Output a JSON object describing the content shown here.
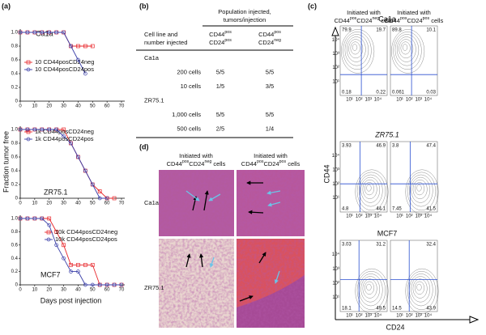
{
  "panel_labels": [
    "(a)",
    "(b)",
    "(c)",
    "(d)"
  ],
  "panel_a": {
    "ylabel": "Fraction tumor free"
  },
  "chart_data": [
    {
      "type": "line",
      "title": "Ca1a",
      "x": [
        0,
        5,
        10,
        15,
        20,
        25,
        30,
        35,
        40,
        45,
        50
      ],
      "xlim": [
        0,
        70
      ],
      "xticks": [
        0,
        10,
        20,
        30,
        40,
        50,
        60,
        70
      ],
      "ylim": [
        0,
        1
      ],
      "yticks": [
        0,
        0.2,
        0.4,
        0.6,
        0.8,
        {
          "value": 1,
          "label": "1.0"
        }
      ],
      "series": [
        {
          "name": "10 CD44posCD24neg",
          "color": "#e8262a",
          "marker": "square",
          "values": [
            1,
            1,
            1,
            1,
            1,
            1,
            1,
            0.8,
            0.8,
            0.8,
            0.8
          ]
        },
        {
          "name": "10 CD44posCD24pos",
          "color": "#3a3fa8",
          "marker": "circle",
          "values": [
            1,
            1,
            1,
            1,
            1,
            1,
            1,
            0.8,
            0.6,
            0.4,
            null
          ]
        }
      ]
    },
    {
      "type": "line",
      "title": "ZR75.1",
      "x": [
        0,
        5,
        10,
        15,
        20,
        25,
        30,
        35,
        40,
        45,
        50,
        55,
        60,
        65
      ],
      "xlim": [
        0,
        70
      ],
      "xticks": [
        0,
        10,
        20,
        30,
        40,
        50,
        60,
        70
      ],
      "ylim": [
        0,
        1
      ],
      "yticks": [
        0,
        0.2,
        0.4,
        0.6,
        0.8,
        {
          "value": 1,
          "label": "1.0"
        }
      ],
      "series": [
        {
          "name": "1k CD44posCD24neg",
          "color": "#e8262a",
          "marker": "square",
          "values": [
            1,
            1,
            1,
            1,
            1,
            1,
            1,
            0.8,
            0.6,
            0.4,
            0.2,
            0.1,
            0,
            0
          ]
        },
        {
          "name": "1k CD44posCD24pos",
          "color": "#3a3fa8",
          "marker": "circle",
          "values": [
            1,
            1,
            1,
            1,
            1,
            1,
            0.9,
            0.8,
            0.6,
            0.4,
            0.2,
            0,
            0,
            null
          ]
        }
      ]
    },
    {
      "type": "line",
      "title": "MCF7",
      "xlabel": "Days post injection",
      "x": [
        0,
        5,
        10,
        15,
        20,
        25,
        30,
        35,
        40,
        45,
        50,
        55,
        60,
        65,
        70
      ],
      "xlim": [
        0,
        70
      ],
      "xticks": [
        0,
        10,
        20,
        30,
        40,
        50,
        60,
        70
      ],
      "ylim": [
        0,
        1
      ],
      "yticks": [
        0,
        0.2,
        0.4,
        0.6,
        0.8,
        {
          "value": 1,
          "label": "1.0"
        }
      ],
      "series": [
        {
          "name": "10k CD44posCD24neg",
          "color": "#e8262a",
          "marker": "square",
          "values": [
            1,
            1,
            1,
            1,
            1,
            0.8,
            0.6,
            0.3,
            0.3,
            0.3,
            0.3,
            0,
            0,
            0,
            0
          ]
        },
        {
          "name": "10k CD44posCD24pos",
          "color": "#3a3fa8",
          "marker": "circle",
          "values": [
            1,
            1,
            1,
            1,
            0.9,
            0.6,
            0.4,
            0.2,
            0.2,
            0,
            0,
            0,
            0,
            0,
            0
          ]
        }
      ]
    }
  ],
  "table": {
    "header": [
      "Population injected,",
      "tumors/injection"
    ],
    "columns": [
      [
        "Cell line and",
        "number injected"
      ],
      [
        [
          "CD44",
          "pos"
        ],
        [
          "CD24",
          "pos"
        ]
      ],
      [
        [
          "CD44",
          "pos"
        ],
        [
          "CD24",
          "neg"
        ]
      ]
    ],
    "rows": [
      [
        "Ca1a"
      ],
      [
        "200 cells",
        "5/5",
        "5/5"
      ],
      [
        "10 cells",
        "1/5",
        "3/5"
      ],
      [
        "ZR75.1"
      ],
      [
        "1,000 cells",
        "5/5",
        "5/5"
      ],
      [
        "500 cells",
        "2/5",
        "1/4"
      ]
    ]
  },
  "flow": {
    "columns": [
      [
        "Initiated with",
        [
          "CD44",
          "pos",
          "CD24",
          "neg",
          " cells"
        ]
      ],
      [
        "Initiated with",
        [
          "CD44",
          "pos",
          "CD24",
          "pos",
          " cells"
        ]
      ]
    ],
    "rows": [
      {
        "label": "Ca1a",
        "plots": [
          {
            "ul": 79.9,
            "ur": 19.7,
            "ll": 0.18,
            "lr": 0.22
          },
          {
            "ul": 89.8,
            "ur": 10.1,
            "ll": 0.061,
            "lr": 0.03
          }
        ]
      },
      {
        "label": "ZR75.1",
        "plots": [
          {
            "ul": 3.93,
            "ur": 46.9,
            "ll": 4.8,
            "lr": 44.1
          },
          {
            "ul": 3.8,
            "ur": 47.4,
            "ll": 7.45,
            "lr": 41.5
          }
        ]
      },
      {
        "label": "MCF7",
        "plots": [
          {
            "ul": 3.03,
            "ur": 31.2,
            "ll": 18.1,
            "lr": 49.5
          },
          {
            "ur": 32.4,
            "ll": 14.5,
            "lr": 43.9
          }
        ]
      }
    ],
    "ticks": [
      "10¹",
      "10²",
      "10³",
      "10⁴"
    ],
    "ylabel": "CD44",
    "xlabel": "CD24"
  },
  "histology": {
    "columns": [
      [
        "Initiated with",
        [
          "CD44",
          "pos",
          "CD24",
          "neg",
          " cells"
        ]
      ],
      [
        "Initiated with",
        [
          "CD44",
          "pos",
          "CD24",
          "pos",
          " cells"
        ]
      ]
    ],
    "rows": [
      "Ca1a",
      "ZR75.1"
    ]
  }
}
